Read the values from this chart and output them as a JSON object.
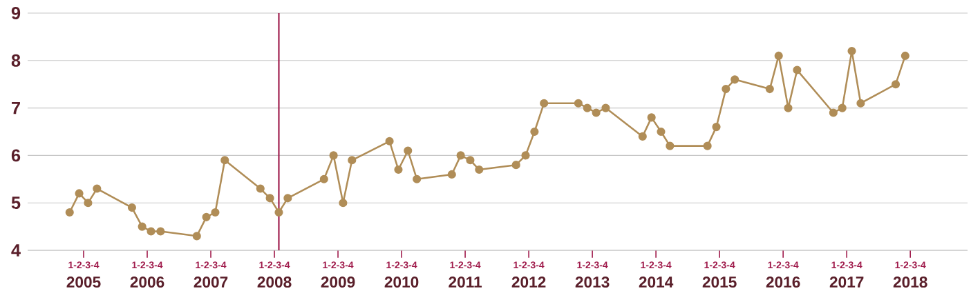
{
  "chart_data": {
    "type": "line",
    "color": "#b08d57",
    "marker": "circle",
    "grid": "y",
    "x": [
      2004.78,
      2004.93,
      2005.07,
      2005.21,
      2005.76,
      2005.92,
      2006.06,
      2006.21,
      2006.78,
      2006.93,
      2007.07,
      2007.22,
      2007.78,
      2007.93,
      2008.07,
      2008.21,
      2008.78,
      2008.93,
      2009.08,
      2009.22,
      2009.81,
      2009.95,
      2010.1,
      2010.24,
      2010.79,
      2010.93,
      2011.08,
      2011.22,
      2011.8,
      2011.95,
      2012.09,
      2012.24,
      2012.78,
      2012.92,
      2013.06,
      2013.21,
      2013.79,
      2013.93,
      2014.08,
      2014.22,
      2014.81,
      2014.95,
      2015.1,
      2015.24,
      2015.79,
      2015.93,
      2016.08,
      2016.22,
      2016.79,
      2016.93,
      2017.08,
      2017.22,
      2017.77,
      2017.92
    ],
    "values": [
      4.8,
      5.2,
      5.0,
      5.3,
      4.9,
      4.5,
      4.4,
      4.4,
      4.3,
      4.7,
      4.8,
      5.9,
      5.3,
      5.1,
      4.8,
      5.1,
      5.5,
      6.0,
      5.0,
      5.9,
      6.3,
      5.7,
      6.1,
      5.5,
      5.6,
      6.0,
      5.9,
      5.7,
      5.8,
      6.0,
      6.5,
      7.1,
      7.1,
      7.0,
      6.9,
      7.0,
      6.4,
      6.8,
      6.5,
      6.2,
      6.2,
      6.6,
      7.4,
      7.6,
      7.4,
      8.1,
      7.0,
      7.8,
      6.9,
      7.0,
      8.2,
      7.1,
      7.5,
      8.1
    ],
    "xlim": [
      2004.12,
      2018.9
    ],
    "ylim": [
      4,
      9
    ],
    "yticks": [
      4,
      5,
      6,
      7,
      8,
      9
    ],
    "xticks": [
      {
        "value": 2005,
        "label": "2005"
      },
      {
        "value": 2006,
        "label": "2006"
      },
      {
        "value": 2007,
        "label": "2007"
      },
      {
        "value": 2008,
        "label": "2008"
      },
      {
        "value": 2009,
        "label": "2009"
      },
      {
        "value": 2010,
        "label": "2010"
      },
      {
        "value": 2011,
        "label": "2011"
      },
      {
        "value": 2012,
        "label": "2012"
      },
      {
        "value": 2013,
        "label": "2013"
      },
      {
        "value": 2014,
        "label": "2014"
      },
      {
        "value": 2015,
        "label": "2015"
      },
      {
        "value": 2016,
        "label": "2016"
      },
      {
        "value": 2017,
        "label": "2017"
      },
      {
        "value": 2018,
        "label": "2018"
      }
    ],
    "ref_lines": [
      {
        "axis": "x",
        "value": 2008.07,
        "color": "#9e1b4b"
      }
    ],
    "annotations": [
      "1-2-3-4",
      "1-2-3-4",
      "1-2-3-4",
      "1-2-3-4",
      "1-2-3-4",
      "1-2-3-4",
      "1-2-3-4",
      "1-2-3-4",
      "1-2-3-4",
      "1-2-3-4",
      "1-2-3-4",
      "1-2-3-4",
      "1-2-3-4",
      "1-2-3-4"
    ]
  }
}
